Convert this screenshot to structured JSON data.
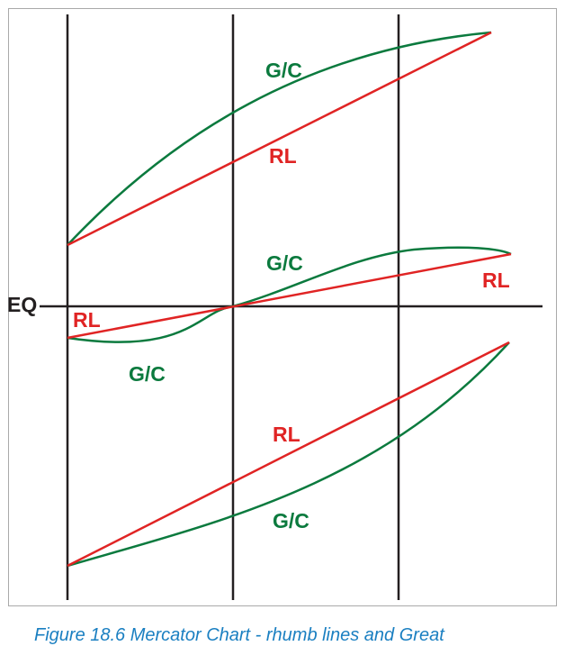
{
  "diagram": {
    "equator_label": "EQ",
    "gc_label": "G/C",
    "rl_label": "RL",
    "colors": {
      "great_circle": "#0b7a3e",
      "rhumb_line": "#e02424",
      "grid": "#231f20",
      "frame": "#a9a9a9",
      "caption": "#1a7fc1"
    }
  },
  "caption": "Figure 18.6  Mercator Chart - rhumb lines and Great"
}
